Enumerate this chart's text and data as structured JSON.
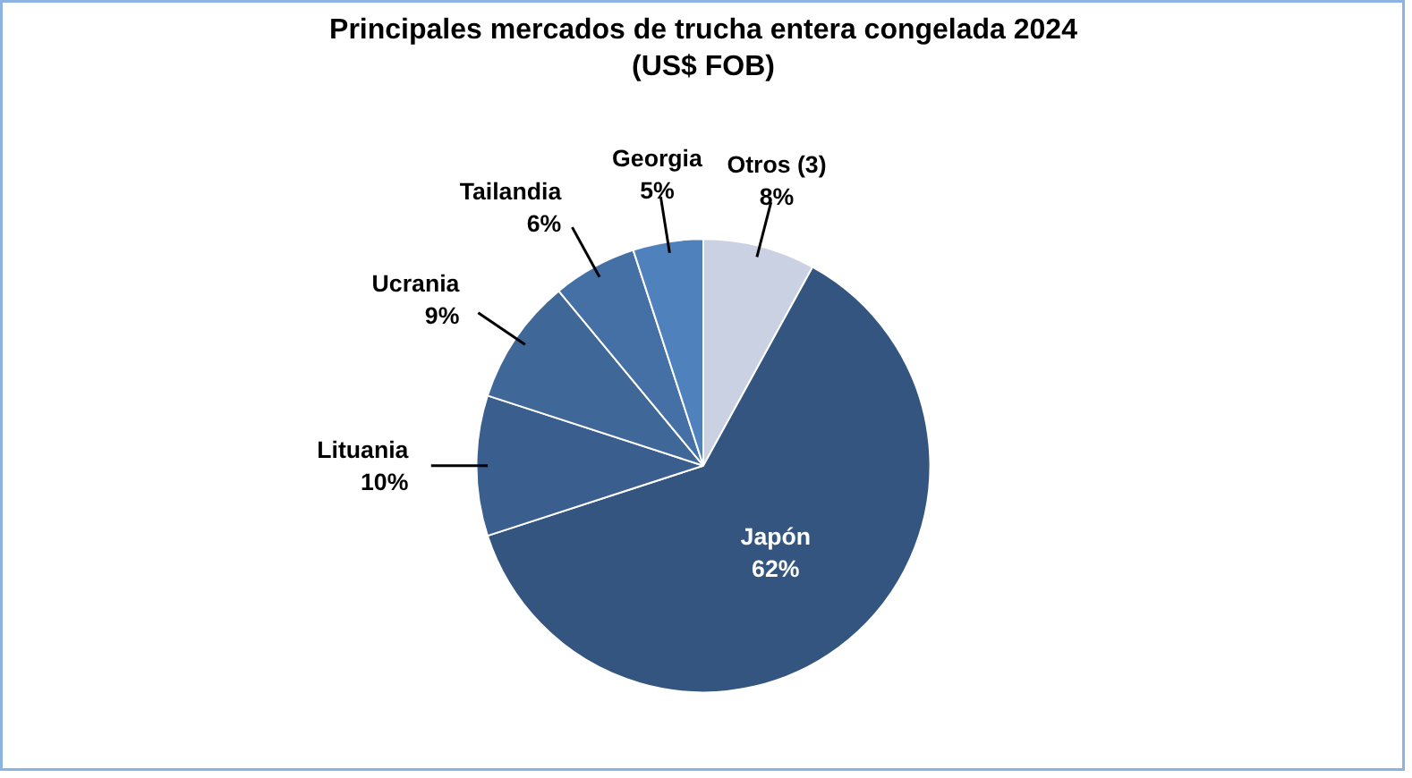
{
  "chart_data": {
    "type": "pie",
    "title": "Principales mercados de trucha entera congelada 2024",
    "subtitle": "(US$ FOB)",
    "categories": [
      "Otros (3)",
      "Japón",
      "Lituania",
      "Ucrania",
      "Tailandia",
      "Georgia"
    ],
    "values": [
      8,
      62,
      10,
      9,
      6,
      5
    ],
    "colors": [
      "#c9d1e2",
      "#34557f",
      "#3a5f8f",
      "#3f6798",
      "#4470a5",
      "#4f81bd"
    ],
    "value_labels": [
      "8%",
      "62%",
      "10%",
      "9%",
      "6%",
      "5%"
    ]
  }
}
